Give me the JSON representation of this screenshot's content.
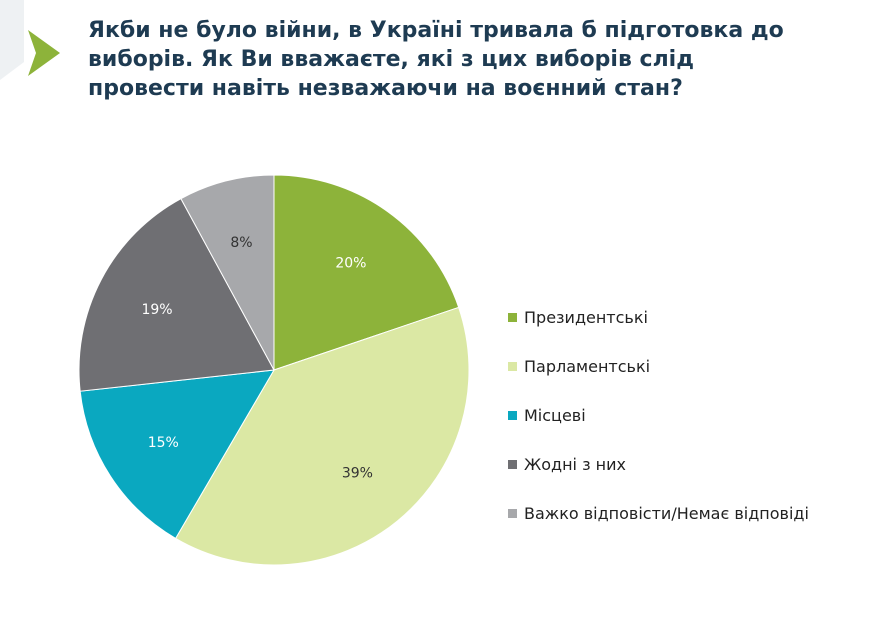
{
  "header": {
    "title_lines": [
      "Якби не було війни, в Україні тривала б підготовка до",
      "виборів. Як Ви вважаєте, які з цих виборів слід",
      "провести навіть незважаючи на воєнний стан?"
    ]
  },
  "colors": {
    "title": "#1e3b52",
    "arrow": "#8db33a",
    "corner": "#eef1f3"
  },
  "chart_data": {
    "type": "pie",
    "unit": "%",
    "start_angle_deg": 0,
    "direction": "clockwise",
    "legend_position": "right",
    "slices": [
      {
        "name": "Президентські",
        "value": 20,
        "label": "20%",
        "color": "#8db33a",
        "label_color": "#ffffff"
      },
      {
        "name": "Парламентські",
        "value": 39,
        "label": "39%",
        "color": "#dbe8a4",
        "label_color": "#333333"
      },
      {
        "name": "Місцеві",
        "value": 15,
        "label": "15%",
        "color": "#0aa8c0",
        "label_color": "#ffffff"
      },
      {
        "name": "Жодні з них",
        "value": 19,
        "label": "19%",
        "color": "#6f6f73",
        "label_color": "#ffffff"
      },
      {
        "name": "Важко відповісти/Немає відповіді",
        "value": 8,
        "label": "8%",
        "color": "#a7a8ab",
        "label_color": "#333333"
      }
    ]
  }
}
